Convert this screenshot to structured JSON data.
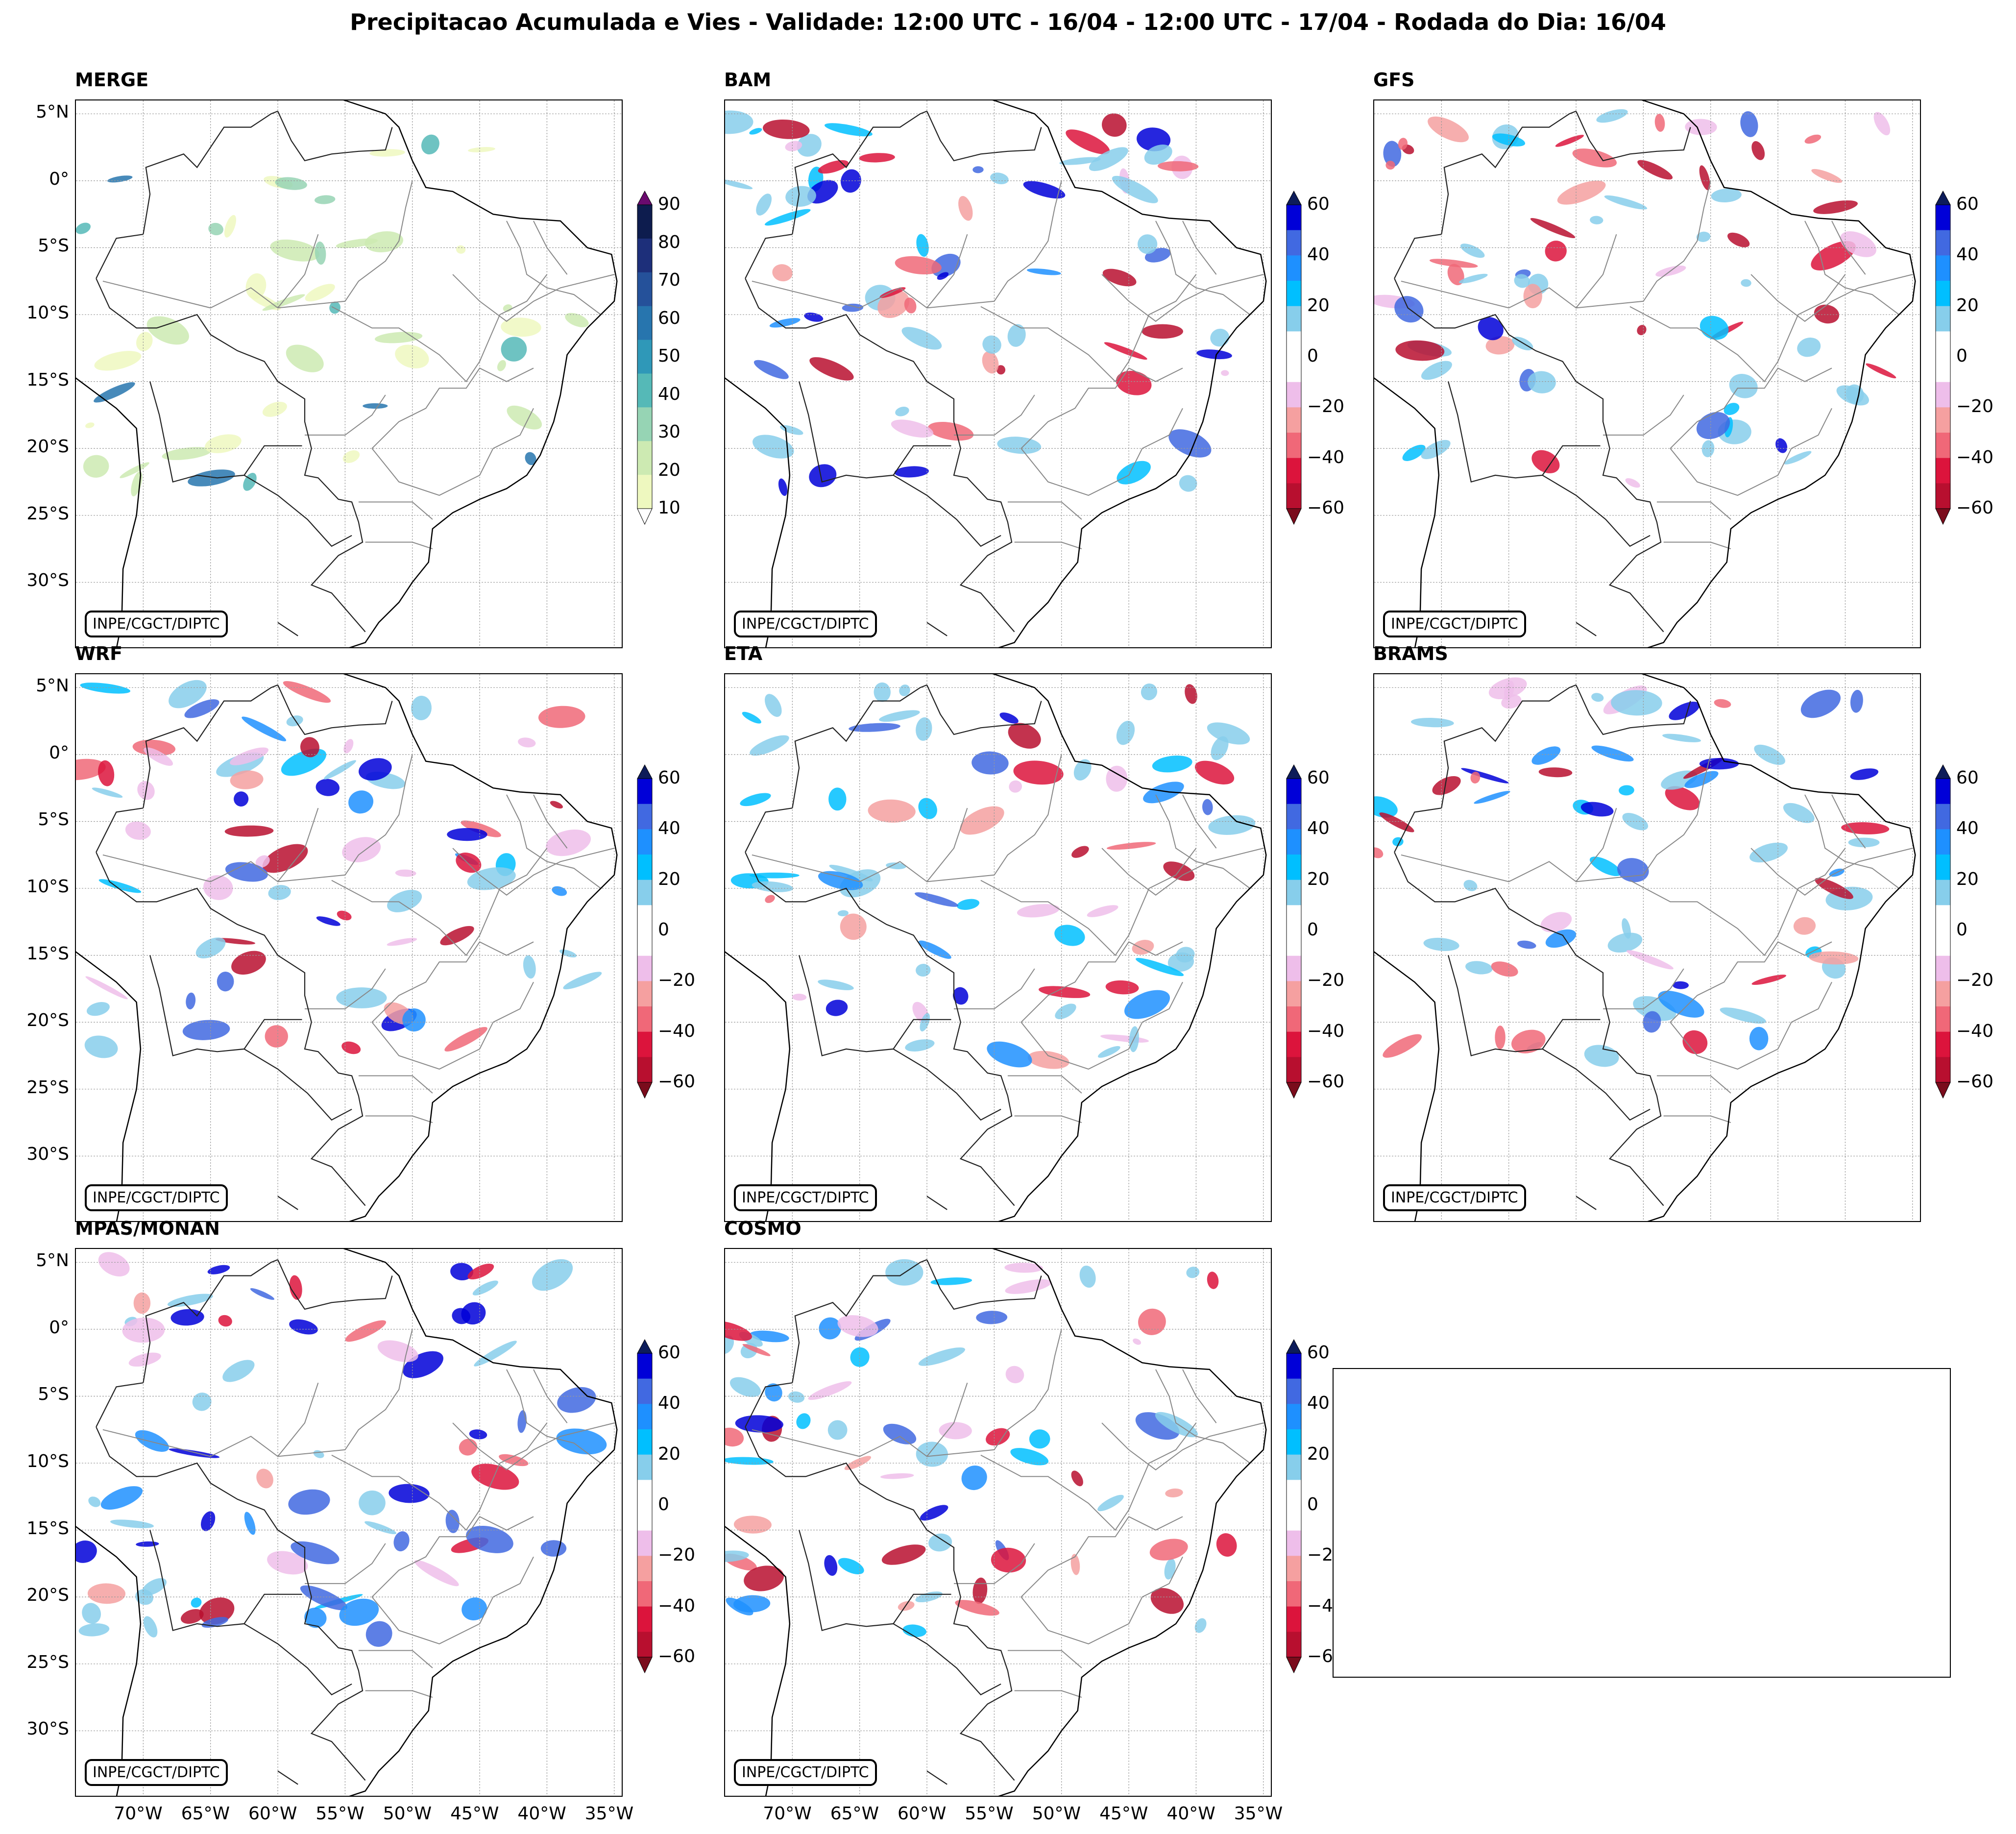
{
  "title": "Precipitacao Acumulada e Vies - Validade: 12:00 UTC - 16/04 - 12:00 UTC - 17/04 - Rodada do Dia: 16/04",
  "credit": "INPE/CGCT/DIPTC",
  "panels": [
    {
      "label": "MERGE",
      "kind": "precip"
    },
    {
      "label": "BAM",
      "kind": "bias"
    },
    {
      "label": "GFS",
      "kind": "bias"
    },
    {
      "label": "WRF",
      "kind": "bias"
    },
    {
      "label": "ETA",
      "kind": "bias"
    },
    {
      "label": "BRAMS",
      "kind": "bias"
    },
    {
      "label": "MPAS/MONAN",
      "kind": "bias"
    },
    {
      "label": "COSMO",
      "kind": "bias"
    }
  ],
  "lat_labels": [
    "5°N",
    "0°",
    "5°S",
    "10°S",
    "15°S",
    "20°S",
    "25°S",
    "30°S"
  ],
  "lon_labels": [
    "70°W",
    "65°W",
    "60°W",
    "55°W",
    "50°W",
    "45°W",
    "40°W",
    "35°W"
  ],
  "colorbars": {
    "precip": {
      "ticks": [
        "90",
        "80",
        "70",
        "60",
        "50",
        "40",
        "30",
        "20",
        "10"
      ],
      "colors": [
        "#0d1c4e",
        "#1d2f7a",
        "#25519a",
        "#2775ae",
        "#2f98b8",
        "#55b9b7",
        "#96d4b4",
        "#cdeab2",
        "#eef8bf"
      ],
      "extend_top": "#6a0a6e",
      "extend_bottom": "#ffffff"
    },
    "bias": {
      "ticks": [
        "60",
        "40",
        "20",
        "0",
        "−20",
        "−40",
        "−60"
      ],
      "colors": [
        "#0000d8",
        "#4169e1",
        "#1e90ff",
        "#00bfff",
        "#87ceeb",
        "#ffffff",
        "#ffffff",
        "#eebeea",
        "#f5a0a0",
        "#f06878",
        "#dc143c",
        "#b80f2f"
      ],
      "extend_top": "#0d1c5a",
      "extend_bottom": "#7a0c1c"
    }
  }
}
